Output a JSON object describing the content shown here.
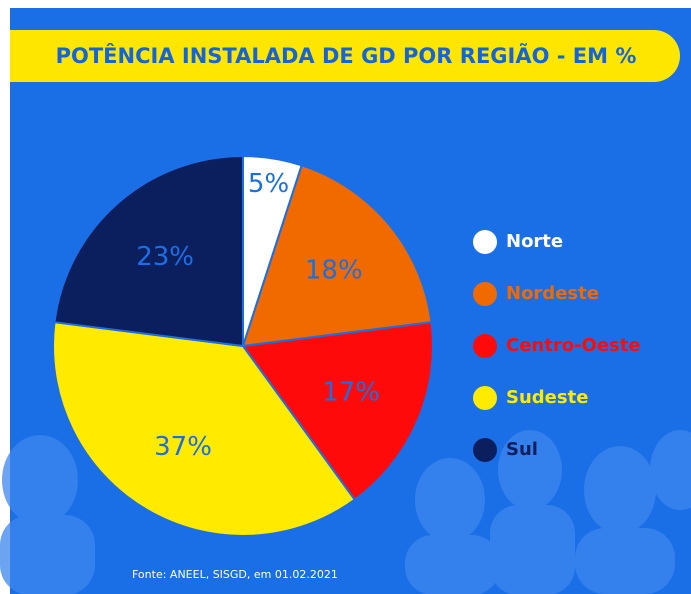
{
  "chart_data": {
    "type": "pie",
    "title": "POTÊNCIA INSTALADA DE GD POR REGIÃO - EM %",
    "categories": [
      "Norte",
      "Nordeste",
      "Centro-Oeste",
      "Sudeste",
      "Sul"
    ],
    "values": [
      5,
      18,
      17,
      37,
      23
    ],
    "value_labels": [
      "5%",
      "18%",
      "17%",
      "37%",
      "23%"
    ],
    "colors": [
      "#ffffff",
      "#f06a00",
      "#ff0a0a",
      "#ffea00",
      "#0b1f5e"
    ],
    "label_color": "#1a6fe6",
    "source": "Fonte: ANEEL, SISGD, em 01.02.2021"
  }
}
